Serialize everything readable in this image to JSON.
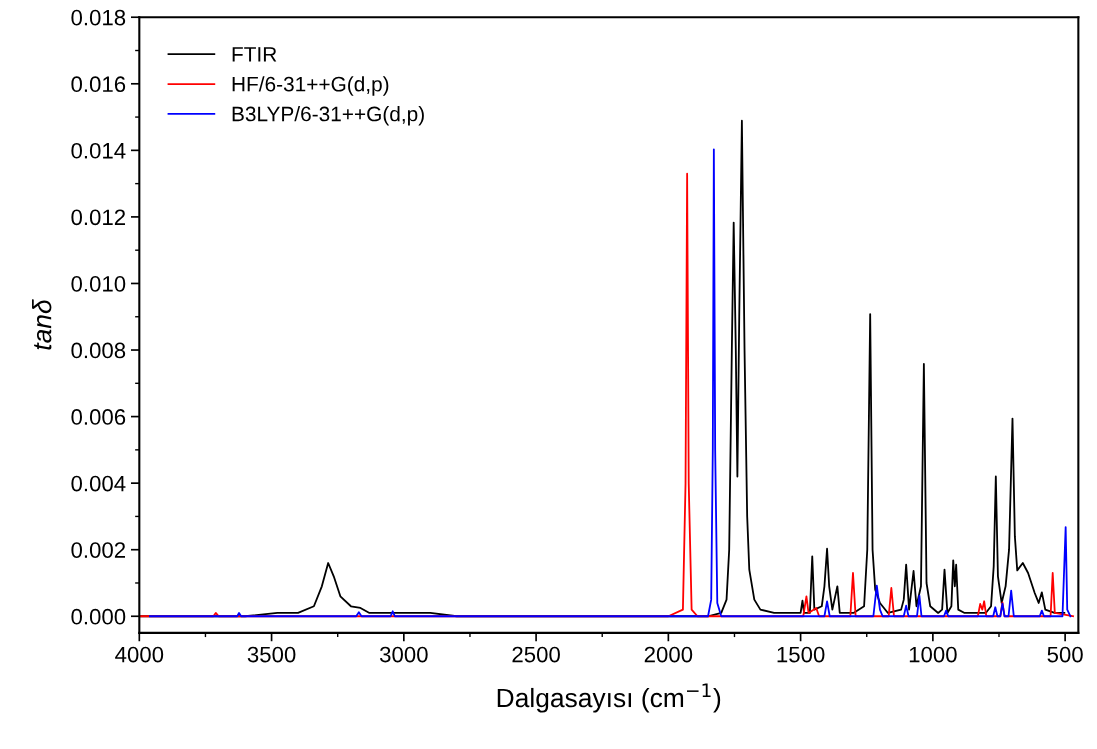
{
  "chart_data": {
    "type": "line",
    "xlabel": "Dalgasayısı (cm$^{−1}$)",
    "ylabel": "tanδ",
    "xlim": [
      4000,
      450
    ],
    "xticks": [
      4000,
      3500,
      3000,
      2500,
      2000,
      1500,
      1000,
      500
    ],
    "ylim": [
      -0.0005,
      0.018
    ],
    "yticks": [
      {
        "value": 0,
        "label": "0.000"
      },
      {
        "value": 0.002,
        "label": "0.002"
      },
      {
        "value": 0.004,
        "label": "0.004"
      },
      {
        "value": 0.006,
        "label": "0.006"
      },
      {
        "value": 0.008,
        "label": "0.008"
      },
      {
        "value": 0.01,
        "label": "0.010"
      },
      {
        "value": 0.012,
        "label": "0.012"
      },
      {
        "value": 0.014,
        "label": "0.014"
      },
      {
        "value": 0.016,
        "label": "0.016"
      },
      {
        "value": 0.018,
        "label": "0.018"
      }
    ],
    "grid": false,
    "legend": "top left",
    "marker": "none",
    "line_style": "solid",
    "series": [
      {
        "name": "FTIR",
        "color": "#000000",
        "x": [
          4000,
          3600,
          3478,
          3400,
          3340,
          3310,
          3286,
          3265,
          3240,
          3200,
          3164,
          3130,
          3050,
          2900,
          2800,
          2500,
          2000,
          1850,
          1800,
          1780,
          1770,
          1760,
          1753,
          1745,
          1739,
          1732,
          1722,
          1712,
          1702,
          1694,
          1675,
          1652,
          1600,
          1520,
          1500,
          1493,
          1487,
          1465,
          1456,
          1448,
          1420,
          1410,
          1400,
          1392,
          1380,
          1361,
          1352,
          1300,
          1260,
          1248,
          1237,
          1228,
          1218,
          1200,
          1170,
          1120,
          1110,
          1101,
          1090,
          1073,
          1062,
          1045,
          1034,
          1024,
          1010,
          980,
          965,
          956,
          945,
          930,
          923,
          917,
          912,
          904,
          880,
          800,
          780,
          770,
          762,
          754,
          740,
          725,
          712,
          699,
          690,
          681,
          660,
          640,
          615,
          600,
          588,
          575,
          540,
          503
        ],
        "values": [
          0,
          0,
          0.0001,
          0.0001,
          0.0003,
          0.0009,
          0.0016,
          0.0012,
          0.0006,
          0.0003,
          0.00025,
          0.0001,
          0.0001,
          0.0001,
          0,
          0,
          0,
          0,
          0.0001,
          0.0005,
          0.002,
          0.008,
          0.01183,
          0.008,
          0.0042,
          0.009,
          0.01489,
          0.008,
          0.003,
          0.0014,
          0.0005,
          0.0002,
          0.0001,
          0.0001,
          0.0001,
          0.00047,
          0.0001,
          0.0001,
          0.0018,
          0.0002,
          0.0003,
          0.0009,
          0.00203,
          0.0009,
          0.0002,
          0.0009,
          0.0001,
          0.0001,
          0.0003,
          0.002,
          0.00908,
          0.002,
          0.0008,
          0.0004,
          0.0001,
          0.0002,
          0.0005,
          0.00155,
          0.0002,
          0.00136,
          0.0003,
          0.0009,
          0.00758,
          0.001,
          0.0003,
          0.0001,
          0.0002,
          0.0014,
          0.0001,
          0.0003,
          0.00168,
          0.0009,
          0.00155,
          0.0002,
          0.0001,
          0.0001,
          0.0003,
          0.0015,
          0.0042,
          0.0012,
          0.0004,
          0.0009,
          0.002,
          0.00594,
          0.0024,
          0.00138,
          0.0016,
          0.0013,
          0.0007,
          0.0004,
          0.00072,
          0.0002,
          0.0001,
          0.0001
        ]
      },
      {
        "name": "HF/6-31++G(d,p)",
        "color": "#ff0000",
        "x": [
          4000,
          3720,
          3711,
          3700,
          2000,
          1945,
          1935,
          1929,
          1923,
          1912,
          1890,
          1490,
          1478,
          1470,
          1441,
          1430,
          1312,
          1302,
          1292,
          1167,
          1157,
          1147,
          830,
          821,
          813,
          806,
          798,
          745,
          737,
          729,
          555,
          547,
          539,
          470
        ],
        "values": [
          0,
          0,
          0.0001,
          0,
          0,
          0.0002,
          0.004,
          0.0133,
          0.004,
          0.0002,
          0,
          0,
          0.0006,
          0.0001,
          0.00025,
          0,
          0,
          0.0013,
          0,
          0,
          0.00085,
          0,
          0,
          0.00037,
          0.0002,
          0.00045,
          0,
          0,
          0.00042,
          0,
          0,
          0.0013,
          0.0001,
          0
        ]
      },
      {
        "name": "B3LYP/6-31++G(d,p)",
        "color": "#0000ff",
        "x": [
          3960,
          3630,
          3623,
          3615,
          3180,
          3170,
          3160,
          3050,
          3042,
          3034,
          1850,
          1838,
          1832,
          1828,
          1823,
          1815,
          1800,
          1410,
          1400,
          1390,
          1225,
          1212,
          1200,
          1190,
          1110,
          1101,
          1092,
          1060,
          1051,
          1043,
          958,
          950,
          942,
          772,
          764,
          756,
          745,
          737,
          729,
          714,
          704,
          694,
          596,
          588,
          580,
          510,
          498,
          492,
          480
        ],
        "values": [
          0,
          0,
          0.0001,
          0,
          0,
          0.00012,
          0,
          0,
          0.00015,
          0,
          0,
          0.0005,
          0.005,
          0.01403,
          0.005,
          0.0004,
          0,
          0,
          0.00045,
          0,
          0,
          0.00092,
          0.0002,
          0,
          0,
          0.00032,
          0,
          0,
          0.00062,
          0,
          0,
          0.00017,
          0,
          0,
          0.00027,
          0,
          0,
          0.00038,
          0,
          0,
          0.00077,
          0,
          0,
          0.00017,
          0,
          0,
          0.00268,
          0.0002,
          0
        ]
      }
    ]
  }
}
